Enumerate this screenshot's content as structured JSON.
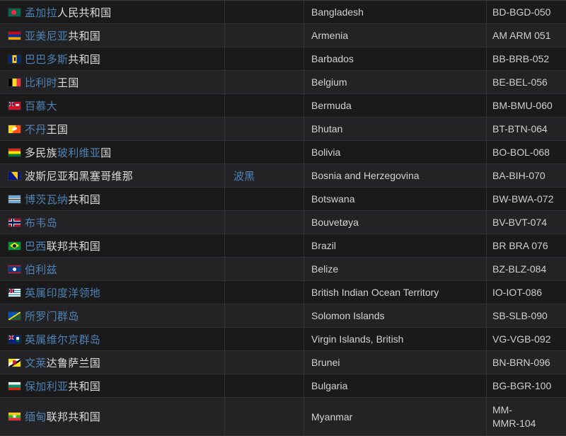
{
  "colors": {
    "link": "#4e82b4",
    "row_dark": "#1a1a1b",
    "row_light": "#232326"
  },
  "rows": [
    {
      "flag": "bangladesh",
      "zh_prefix": "",
      "zh_link": "孟加拉",
      "zh_suffix": "人民共和国",
      "alias": "",
      "english": "Bangladesh",
      "code": "BD-BGD-050"
    },
    {
      "flag": "armenia",
      "zh_prefix": "",
      "zh_link": "亚美尼亚",
      "zh_suffix": "共和国",
      "alias": "",
      "english": "Armenia",
      "code": "AM ARM 051"
    },
    {
      "flag": "barbados",
      "zh_prefix": "",
      "zh_link": "巴巴多斯",
      "zh_suffix": "共和国",
      "alias": "",
      "english": "Barbados",
      "code": "BB-BRB-052"
    },
    {
      "flag": "belgium",
      "zh_prefix": "",
      "zh_link": "比利时",
      "zh_suffix": "王国",
      "alias": "",
      "english": "Belgium",
      "code": "BE-BEL-056"
    },
    {
      "flag": "bermuda",
      "zh_prefix": "",
      "zh_link": "百慕大",
      "zh_suffix": "",
      "alias": "",
      "english": "Bermuda",
      "code": "BM-BMU-060"
    },
    {
      "flag": "bhutan",
      "zh_prefix": "",
      "zh_link": "不丹",
      "zh_suffix": "王国",
      "alias": "",
      "english": "Bhutan",
      "code": "BT-BTN-064"
    },
    {
      "flag": "bolivia",
      "zh_prefix": "多民族",
      "zh_link": "玻利维亚",
      "zh_suffix": "国",
      "alias": "",
      "english": "Bolivia",
      "code": "BO-BOL-068"
    },
    {
      "flag": "bosnia-herzegovina",
      "zh_prefix": "波斯尼亚和黑塞哥维那",
      "zh_link": "",
      "zh_suffix": "",
      "alias": "波黑",
      "english": "Bosnia and Herzegovina",
      "code": "BA-BIH-070"
    },
    {
      "flag": "botswana",
      "zh_prefix": "",
      "zh_link": "博茨瓦纳",
      "zh_suffix": "共和国",
      "alias": "",
      "english": "Botswana",
      "code": "BW-BWA-072"
    },
    {
      "flag": "bouvet-island",
      "zh_prefix": "",
      "zh_link": "布韦岛",
      "zh_suffix": "",
      "alias": "",
      "english": "Bouvetøya",
      "code": "BV-BVT-074"
    },
    {
      "flag": "brazil",
      "zh_prefix": "",
      "zh_link": "巴西",
      "zh_suffix": "联邦共和国",
      "alias": "",
      "english": "Brazil",
      "code": "BR BRA 076"
    },
    {
      "flag": "belize",
      "zh_prefix": "",
      "zh_link": "伯利兹",
      "zh_suffix": "",
      "alias": "",
      "english": "Belize",
      "code": "BZ-BLZ-084"
    },
    {
      "flag": "british-indian-ocean-territory",
      "zh_prefix": "",
      "zh_link": "英属印度洋领地",
      "zh_suffix": "",
      "alias": "",
      "english": "British Indian Ocean Territory",
      "code": "IO-IOT-086"
    },
    {
      "flag": "solomon-islands",
      "zh_prefix": "",
      "zh_link": "所罗门群岛",
      "zh_suffix": "",
      "alias": "",
      "english": "Solomon Islands",
      "code": "SB-SLB-090"
    },
    {
      "flag": "virgin-islands-british",
      "zh_prefix": "",
      "zh_link": "英属维尔京群岛",
      "zh_suffix": "",
      "alias": "",
      "english": "Virgin Islands, British",
      "code": "VG-VGB-092"
    },
    {
      "flag": "brunei",
      "zh_prefix": "",
      "zh_link": "文莱",
      "zh_suffix": "达鲁萨兰国",
      "alias": "",
      "english": "Brunei",
      "code": "BN-BRN-096"
    },
    {
      "flag": "bulgaria",
      "zh_prefix": "",
      "zh_link": "保加利亚",
      "zh_suffix": "共和国",
      "alias": "",
      "english": "Bulgaria",
      "code": "BG-BGR-100"
    },
    {
      "flag": "myanmar",
      "zh_prefix": "",
      "zh_link": "缅甸",
      "zh_suffix": "联邦共和国",
      "alias": "",
      "english": "Myanmar",
      "code": "MM-\nMMR-104"
    }
  ]
}
